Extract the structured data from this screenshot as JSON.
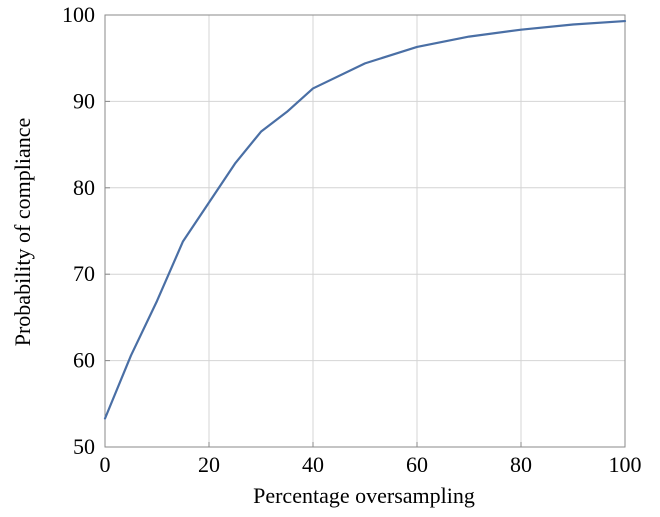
{
  "chart_data": {
    "type": "line",
    "title": "",
    "xlabel": "Percentage oversampling",
    "ylabel": "Probability of compliance",
    "xlim": [
      0,
      100
    ],
    "ylim": [
      50,
      100
    ],
    "x_ticks": [
      0,
      20,
      40,
      60,
      80,
      100
    ],
    "y_ticks": [
      50,
      60,
      70,
      80,
      90,
      100
    ],
    "grid": true,
    "series": [
      {
        "color": "#4a6fa5",
        "x": [
          0,
          5,
          10,
          15,
          20,
          25,
          30,
          35,
          40,
          50,
          60,
          70,
          80,
          90,
          100
        ],
        "y": [
          53.3,
          60.6,
          66.9,
          73.8,
          78.3,
          82.8,
          86.5,
          88.8,
          91.5,
          94.4,
          96.3,
          97.5,
          98.3,
          98.9,
          99.3
        ]
      }
    ]
  }
}
